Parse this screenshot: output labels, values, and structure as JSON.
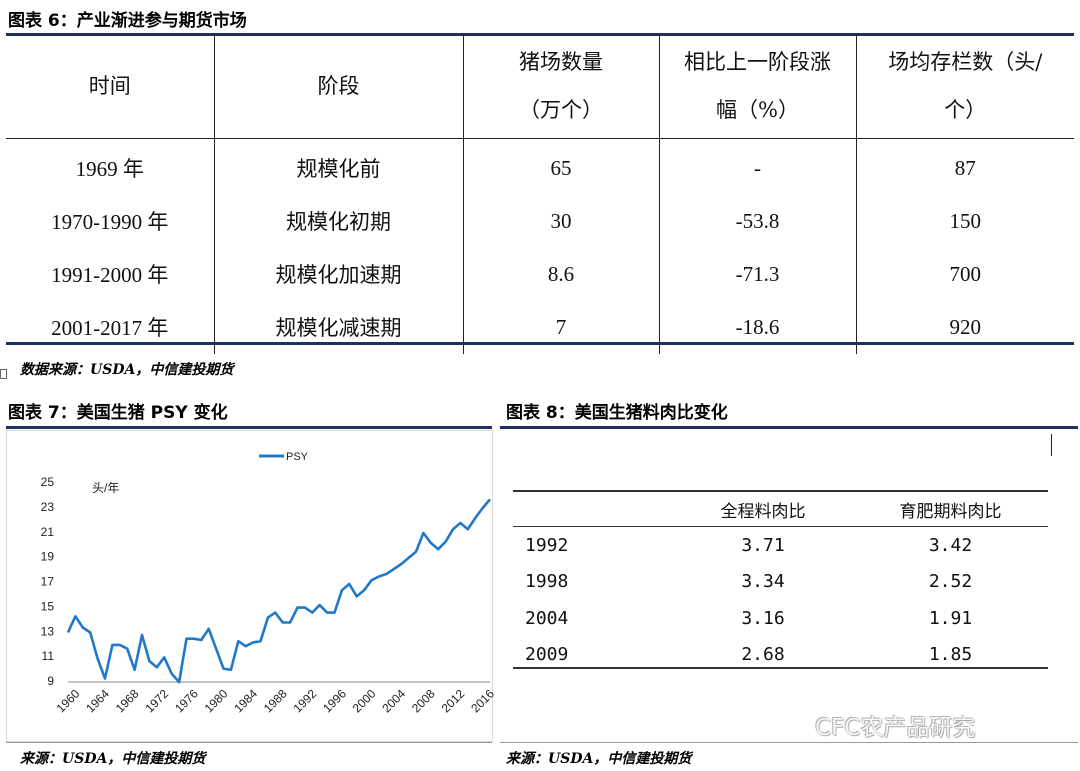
{
  "table6": {
    "title": "图表 6：产业渐进参与期货市场",
    "headers": [
      [
        "时间"
      ],
      [
        "阶段"
      ],
      [
        "猪场数量",
        "（万个）"
      ],
      [
        "相比上一阶段涨",
        "幅（%）"
      ],
      [
        "场均存栏数（头/",
        "个）"
      ]
    ],
    "rows": [
      [
        "1969 年",
        "规模化前",
        "65",
        "-",
        "87"
      ],
      [
        "1970-1990 年",
        "规模化初期",
        "30",
        "-53.8",
        "150"
      ],
      [
        "1991-2000 年",
        "规模化加速期",
        "8.6",
        "-71.3",
        "700"
      ],
      [
        "2001-2017 年",
        "规模化减速期",
        "7",
        "-18.6",
        "920"
      ]
    ],
    "source": "数据来源：USDA，中信建投期货"
  },
  "chart7": {
    "title": "图表 7：美国生猪 PSY 变化",
    "source": "来源：USDA，中信建投期货",
    "line_color": "#1f78c8",
    "chart_data": {
      "type": "line",
      "title": "",
      "ylabel": "头/年",
      "xlabel": "",
      "ylim": [
        9,
        25
      ],
      "xlim": [
        1960,
        2017
      ],
      "yticks": [
        9,
        11,
        13,
        15,
        17,
        19,
        21,
        23,
        25
      ],
      "xticks": [
        1960,
        1964,
        1968,
        1972,
        1976,
        1980,
        1984,
        1988,
        1992,
        1996,
        2000,
        2004,
        2008,
        2012,
        2016
      ],
      "legend_position": "top-center",
      "series": [
        {
          "name": "PSY",
          "x": [
            1960,
            1961,
            1962,
            1963,
            1964,
            1965,
            1966,
            1967,
            1968,
            1969,
            1970,
            1971,
            1972,
            1973,
            1974,
            1975,
            1976,
            1977,
            1978,
            1979,
            1980,
            1981,
            1982,
            1983,
            1984,
            1985,
            1986,
            1987,
            1988,
            1989,
            1990,
            1991,
            1992,
            1993,
            1994,
            1995,
            1996,
            1997,
            1998,
            1999,
            2000,
            2001,
            2002,
            2003,
            2004,
            2005,
            2006,
            2007,
            2008,
            2009,
            2010,
            2011,
            2012,
            2013,
            2014,
            2015,
            2016,
            2017
          ],
          "y": [
            12.9,
            14.2,
            13.3,
            12.9,
            10.8,
            9.2,
            11.9,
            11.9,
            11.6,
            9.9,
            12.7,
            10.6,
            10.1,
            10.9,
            9.6,
            8.9,
            12.4,
            12.4,
            12.3,
            13.2,
            11.6,
            10.0,
            9.9,
            12.2,
            11.8,
            12.1,
            12.2,
            14.1,
            14.5,
            13.7,
            13.7,
            14.9,
            14.9,
            14.5,
            15.1,
            14.5,
            14.5,
            16.3,
            16.8,
            15.8,
            16.3,
            17.1,
            17.4,
            17.6,
            18.0,
            18.4,
            18.9,
            19.4,
            20.9,
            20.1,
            19.6,
            20.2,
            21.2,
            21.7,
            21.2,
            22.1,
            22.9,
            23.6
          ]
        }
      ]
    }
  },
  "table8": {
    "title": "图表 8：美国生猪料肉比变化",
    "headers": [
      "",
      "全程料肉比",
      "育肥期料肉比"
    ],
    "rows": [
      [
        "1992",
        "3.71",
        "3.42"
      ],
      [
        "1998",
        "3.34",
        "2.52"
      ],
      [
        "2004",
        "3.16",
        "1.91"
      ],
      [
        "2009",
        "2.68",
        "1.85"
      ]
    ],
    "source": "来源：USDA，中信建投期货"
  },
  "watermark": "CFC农产品研究"
}
